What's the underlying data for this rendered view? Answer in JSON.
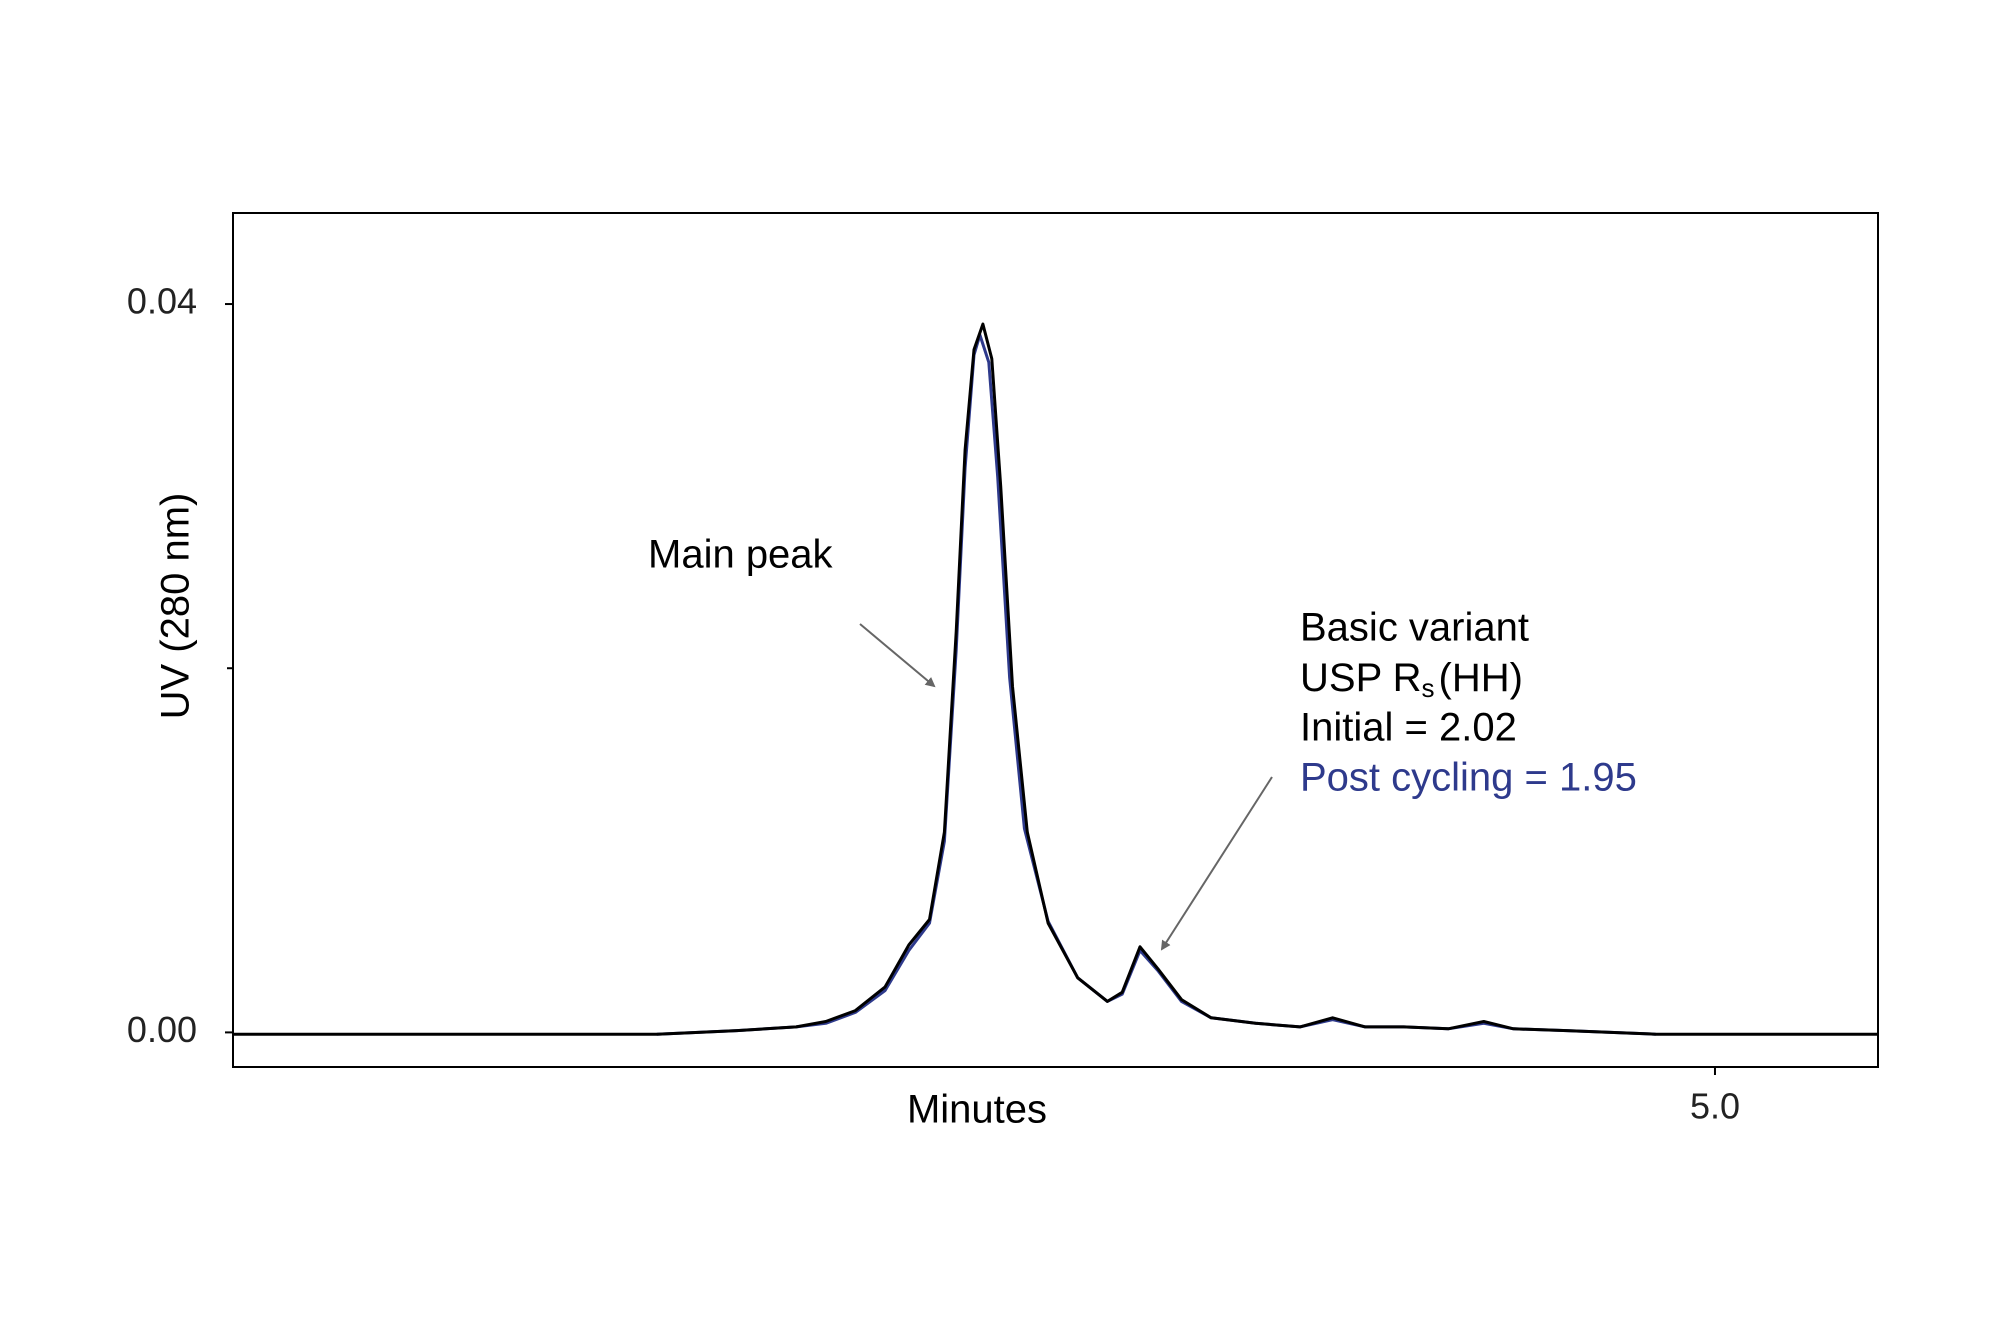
{
  "chart_data": {
    "type": "line",
    "xlabel": "Minutes",
    "ylabel": "UV (280 nm)",
    "xlim": [
      0,
      5.55
    ],
    "xticks": [
      {
        "value": 5,
        "label": "5.0"
      }
    ],
    "ylim": [
      -0.0019,
      0.045
    ],
    "yticks": [
      {
        "value": 0,
        "label": "0.00"
      },
      0.04
    ],
    "yminor_ticks": [
      0.02
    ],
    "series": [
      {
        "color": "#2e3a8c",
        "x": [
          1.43,
          1.7,
          1.9,
          2.0,
          2.1,
          2.2,
          2.28,
          2.35,
          2.4,
          2.44,
          2.47,
          2.5,
          2.52,
          2.55,
          2.58,
          2.62,
          2.67,
          2.75,
          2.85,
          2.95,
          3.0,
          3.06,
          3.12,
          3.2,
          3.3,
          3.45,
          3.6,
          3.71,
          3.82,
          3.95,
          4.1,
          4.22,
          4.32,
          4.5,
          4.8
        ],
        "values": [
          -0.0001,
          0.0001,
          0.0003,
          0.0005,
          0.0011,
          0.0023,
          0.0045,
          0.006,
          0.0105,
          0.021,
          0.031,
          0.0372,
          0.0383,
          0.0368,
          0.0305,
          0.0195,
          0.0112,
          0.0061,
          0.003,
          0.0017,
          0.0021,
          0.0045,
          0.0034,
          0.0017,
          0.0008,
          0.0005,
          0.0003,
          0.0007,
          0.0003,
          0.0003,
          0.0002,
          0.0005,
          0.0002,
          0.0001,
          -0.0001
        ]
      },
      {
        "color": "#000000",
        "x": [
          0,
          1.0,
          1.43,
          1.7,
          1.9,
          2.0,
          2.1,
          2.2,
          2.28,
          2.35,
          2.4,
          2.44,
          2.47,
          2.5,
          2.53,
          2.56,
          2.59,
          2.63,
          2.68,
          2.75,
          2.85,
          2.95,
          3.0,
          3.06,
          3.12,
          3.2,
          3.3,
          3.45,
          3.6,
          3.71,
          3.82,
          3.95,
          4.1,
          4.22,
          4.32,
          4.5,
          4.8,
          5.2,
          5.55
        ],
        "values": [
          -0.0001,
          -0.0001,
          -0.0001,
          0.0001,
          0.0003,
          0.0006,
          0.0012,
          0.0025,
          0.0048,
          0.0062,
          0.011,
          0.022,
          0.032,
          0.0375,
          0.0389,
          0.037,
          0.03,
          0.019,
          0.011,
          0.006,
          0.003,
          0.0017,
          0.0022,
          0.0047,
          0.0035,
          0.0018,
          0.0008,
          0.0005,
          0.0003,
          0.0008,
          0.0003,
          0.0003,
          0.0002,
          0.0006,
          0.0002,
          0.0001,
          -0.0001,
          -0.0001,
          -0.0001
        ]
      }
    ],
    "annotations": {
      "main_peak": "Main peak",
      "basic_variant": "Basic variant",
      "usp_rs": [
        "USP R",
        "s",
        "(HH)"
      ],
      "initial": "Initial = 2.02",
      "post_cycling": {
        "text": "Post cycling = 1.95",
        "color": "#2e3a8c"
      }
    }
  }
}
